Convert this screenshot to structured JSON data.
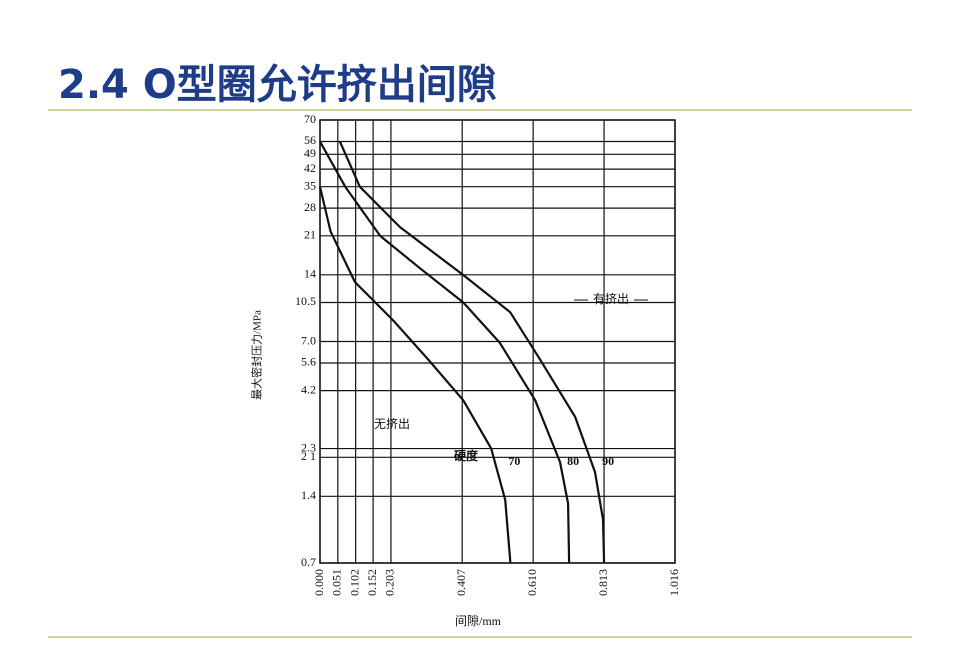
{
  "slide_title": "2.4 O型圈允许挤出间隙",
  "chart_data": {
    "type": "line",
    "ylabel": "最大密封压力/MPa",
    "xlabel": "间隙/mm",
    "log_y": true,
    "grid": true,
    "color": "#111111",
    "xlim": [
      0,
      1.016
    ],
    "ylim": [
      0.7,
      70
    ],
    "xticks": [
      {
        "value": 0,
        "label": "0.000"
      },
      0.051,
      0.102,
      0.152,
      0.203,
      0.407,
      {
        "value": 0.61,
        "label": "0.610"
      },
      0.813,
      1.016
    ],
    "yticks": [
      70,
      56,
      49,
      42,
      35,
      28,
      21,
      14,
      10.5,
      {
        "value": 7,
        "label": "7.0"
      },
      5.6,
      4.2,
      2.3,
      {
        "value": 2.1,
        "label": "2 1"
      },
      1.4,
      0.7
    ],
    "legend_title": "硬度",
    "series": [
      {
        "name": "70",
        "x": [
          0,
          0.03,
          0.1,
          0.21,
          0.31,
          0.41,
          0.49,
          0.53,
          0.545
        ],
        "values": [
          35,
          22,
          13,
          8.7,
          5.8,
          3.8,
          2.3,
          1.35,
          0.7
        ]
      },
      {
        "name": "80",
        "x": [
          0,
          0.072,
          0.172,
          0.286,
          0.41,
          0.515,
          0.616,
          0.687,
          0.71,
          0.713
        ],
        "values": [
          56,
          35,
          21,
          15,
          10.5,
          6.9,
          3.8,
          2.0,
          1.3,
          0.7
        ]
      },
      {
        "name": "90",
        "x": [
          0.057,
          0.114,
          0.229,
          0.409,
          0.544,
          0.63,
          0.73,
          0.787,
          0.81,
          0.813
        ],
        "values": [
          56,
          35,
          23,
          14,
          9.5,
          5.8,
          3.2,
          1.8,
          1.1,
          0.7
        ]
      }
    ],
    "annotations": [
      "有挤出",
      "无挤出"
    ]
  }
}
